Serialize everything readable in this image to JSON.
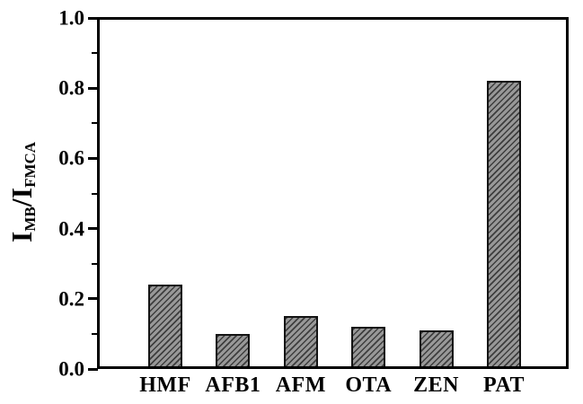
{
  "chart_data": {
    "type": "bar",
    "title": "",
    "categories": [
      "HMF",
      "AFB1",
      "AFM",
      "OTA",
      "ZEN",
      "PAT"
    ],
    "values": [
      0.24,
      0.1,
      0.15,
      0.12,
      0.11,
      0.82
    ],
    "xlabel": "",
    "ylabel": "I_MB/I_FMCA",
    "ylabel_rich": [
      {
        "t": "I",
        "sub": false
      },
      {
        "t": "MB",
        "sub": true
      },
      {
        "t": "/I",
        "sub": false
      },
      {
        "t": "FMCA",
        "sub": true
      }
    ],
    "ylim": [
      0.0,
      1.0
    ],
    "yticks": [
      0.0,
      0.2,
      0.4,
      0.6,
      0.8,
      1.0
    ],
    "ytick_labels": [
      "0.0",
      "0.2",
      "0.4",
      "0.6",
      "0.8",
      "1.0"
    ],
    "minor_yticks": [
      0.1,
      0.3,
      0.5,
      0.7,
      0.9
    ],
    "grid": false,
    "legend_position": "none",
    "bar_hatch": "diagonal-forward-slash",
    "colors": {
      "background": "#ffffff",
      "axis": "#000000",
      "text": "#000000",
      "bar_fill": "#989898",
      "bar_hatch_line": "#3e3e3e",
      "bar_border": "#141414"
    }
  }
}
